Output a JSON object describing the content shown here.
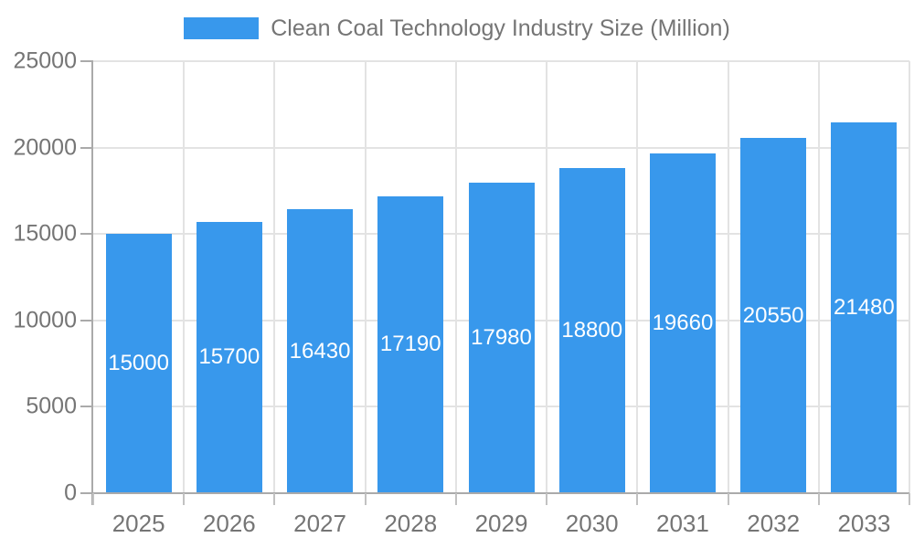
{
  "legend": {
    "label": "Clean Coal Technology Industry Size (Million)"
  },
  "colors": {
    "bar": "#3898EC",
    "grid": "#E3E3E3",
    "axis_line": "#AAAAAA",
    "tick_mark": "#C2C2C2",
    "tick_text": "#757575",
    "bar_value_text": "#FFFFFF",
    "background": "#FFFFFF"
  },
  "chart_data": {
    "type": "bar",
    "title": "",
    "series_name": "Clean Coal Technology Industry Size (Million)",
    "categories": [
      "2025",
      "2026",
      "2027",
      "2028",
      "2029",
      "2030",
      "2031",
      "2032",
      "2033"
    ],
    "values": [
      15000,
      15700,
      16430,
      17190,
      17980,
      18800,
      19660,
      20550,
      21480
    ],
    "xlabel": "",
    "ylabel": "",
    "ylim": [
      0,
      25000
    ],
    "ytick_interval": 5000,
    "ytick_labels": [
      "0",
      "5000",
      "10000",
      "15000",
      "20000",
      "25000"
    ],
    "grid": "horizontal-and-vertical",
    "legend_position": "top-center",
    "value_labels": "inside-center-white"
  }
}
